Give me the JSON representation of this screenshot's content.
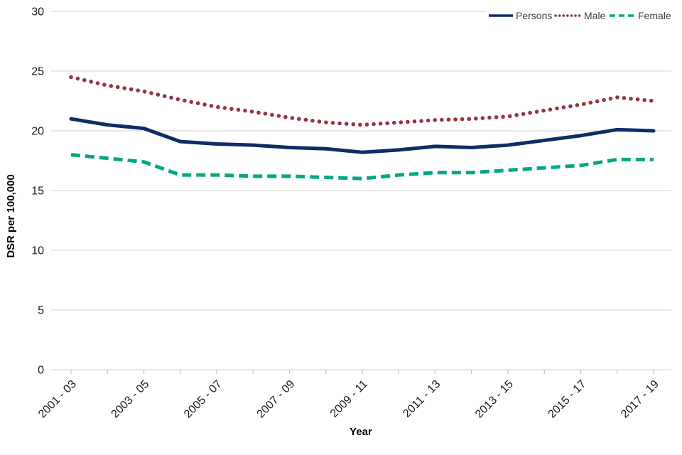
{
  "chart_data": {
    "type": "line",
    "title": "",
    "xlabel": "Year",
    "ylabel": "DSR per 100,000",
    "ylim": [
      0,
      30
    ],
    "yticks": [
      0,
      5,
      10,
      15,
      20,
      25,
      30
    ],
    "grid": "horizontal",
    "legend_position": "top-right",
    "x_label_every": 2,
    "categories": [
      "2001 - 03",
      "2002 - 04",
      "2003 - 05",
      "2004 - 06",
      "2005 - 07",
      "2006 - 08",
      "2007 - 09",
      "2008 - 10",
      "2009 - 11",
      "2010 - 12",
      "2011 - 13",
      "2012 - 14",
      "2013 - 15",
      "2014 - 16",
      "2015 - 17",
      "2016 - 18",
      "2017 - 19"
    ],
    "shown_x_tick_labels": [
      "2001 - 03",
      "2003 - 05",
      "2005 - 07",
      "2007 - 09",
      "2009 - 11",
      "2011 - 13",
      "2013 - 15",
      "2015 - 17",
      "2017 - 19"
    ],
    "series": [
      {
        "name": "Persons",
        "style": "solid",
        "color": "#0d2d66",
        "values": [
          21.0,
          20.5,
          20.2,
          19.1,
          18.9,
          18.8,
          18.6,
          18.5,
          18.2,
          18.4,
          18.7,
          18.6,
          18.8,
          19.2,
          19.6,
          20.1,
          20.0
        ]
      },
      {
        "name": "Male",
        "style": "dotted",
        "color": "#97333f",
        "values": [
          24.5,
          23.8,
          23.3,
          22.6,
          22.0,
          21.6,
          21.1,
          20.7,
          20.5,
          20.7,
          20.9,
          21.0,
          21.2,
          21.7,
          22.2,
          22.8,
          22.5
        ]
      },
      {
        "name": "Female",
        "style": "dashed",
        "color": "#00a884",
        "values": [
          18.0,
          17.7,
          17.4,
          16.3,
          16.3,
          16.2,
          16.2,
          16.1,
          16.0,
          16.3,
          16.5,
          16.5,
          16.7,
          16.9,
          17.1,
          17.6,
          17.6
        ]
      }
    ]
  },
  "colors": {
    "background": "#ffffff",
    "gridline": "#d9d9d9",
    "tick": "#c9c9c9",
    "axis_text": "#1a1a1a",
    "axis_title_text": "#000000",
    "legend_text": "#3f3f3f"
  }
}
